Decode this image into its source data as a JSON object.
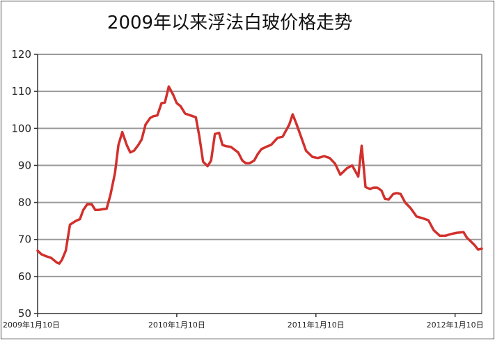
{
  "chart_data": {
    "type": "line",
    "title": "2009年以来浮法白玻价格走势",
    "xlabel": "",
    "ylabel": "",
    "ylim": [
      50,
      120
    ],
    "yticks": [
      50,
      60,
      70,
      80,
      90,
      100,
      110,
      120
    ],
    "xticks": [
      "2009年1月10日",
      "2010年1月10日",
      "2011年1月10日",
      "2012年1月10日"
    ],
    "grid": true,
    "series": [
      {
        "color": "#d2302c",
        "x": [
          "2009-01-10",
          "2009-01-20",
          "2009-02-01",
          "2009-02-15",
          "2009-03-01",
          "2009-03-08",
          "2009-03-15",
          "2009-03-25",
          "2009-04-05",
          "2009-04-20",
          "2009-05-01",
          "2009-05-10",
          "2009-05-20",
          "2009-06-01",
          "2009-06-10",
          "2009-06-20",
          "2009-07-01",
          "2009-07-10",
          "2009-07-20",
          "2009-08-01",
          "2009-08-10",
          "2009-08-20",
          "2009-09-01",
          "2009-09-10",
          "2009-09-20",
          "2009-10-01",
          "2009-10-10",
          "2009-10-20",
          "2009-11-01",
          "2009-11-10",
          "2009-11-20",
          "2009-12-01",
          "2009-12-10",
          "2009-12-20",
          "2010-01-01",
          "2010-01-10",
          "2010-01-20",
          "2010-02-01",
          "2010-02-15",
          "2010-03-01",
          "2010-03-10",
          "2010-03-20",
          "2010-04-01",
          "2010-04-10",
          "2010-04-20",
          "2010-05-01",
          "2010-05-10",
          "2010-05-20",
          "2010-06-01",
          "2010-06-10",
          "2010-06-20",
          "2010-07-01",
          "2010-07-10",
          "2010-07-20",
          "2010-08-01",
          "2010-08-10",
          "2010-08-20",
          "2010-09-01",
          "2010-09-15",
          "2010-10-01",
          "2010-10-15",
          "2010-11-01",
          "2010-11-10",
          "2010-11-20",
          "2010-12-01",
          "2010-12-15",
          "2011-01-01",
          "2011-01-15",
          "2011-02-01",
          "2011-02-15",
          "2011-03-01",
          "2011-03-15",
          "2011-04-01",
          "2011-04-15",
          "2011-05-01",
          "2011-05-10",
          "2011-05-20",
          "2011-06-01",
          "2011-06-10",
          "2011-06-20",
          "2011-07-01",
          "2011-07-10",
          "2011-07-20",
          "2011-08-01",
          "2011-08-10",
          "2011-08-20",
          "2011-09-01",
          "2011-09-15",
          "2011-10-01",
          "2011-10-15",
          "2011-11-01",
          "2011-11-15",
          "2011-12-01",
          "2011-12-15",
          "2012-01-01",
          "2012-01-15",
          "2012-02-01",
          "2012-02-10",
          "2012-02-20",
          "2012-03-01",
          "2012-03-10",
          "2012-03-20"
        ],
        "values": [
          67,
          66,
          65.5,
          65,
          63.8,
          63.5,
          64.5,
          67,
          74,
          75,
          75.5,
          78,
          79.5,
          79.5,
          78,
          78,
          78.2,
          78.3,
          82,
          88,
          95.5,
          99,
          95.5,
          93.5,
          94,
          95.5,
          97,
          101,
          102.8,
          103.3,
          103.5,
          106.8,
          107,
          111.3,
          109,
          106.8,
          106,
          104,
          103.5,
          103,
          98,
          91,
          89.8,
          91.3,
          98.5,
          98.8,
          95.5,
          95.2,
          95,
          94.3,
          93.5,
          91.3,
          90.6,
          90.6,
          91.3,
          93,
          94.4,
          95,
          95.6,
          97.4,
          97.8,
          101,
          103.8,
          101.2,
          98,
          94,
          92.3,
          92,
          92.5,
          92,
          90.5,
          87.5,
          89.2,
          90,
          87,
          95.3,
          84.2,
          83.6,
          84,
          84,
          83.2,
          81,
          80.8,
          82.3,
          82.5,
          82.3,
          80,
          78.5,
          76.2,
          75.8,
          75.2,
          72.5,
          71,
          71,
          71.5,
          71.8,
          72,
          70.5,
          69.5,
          68.5,
          67.3,
          67.5
        ]
      }
    ]
  }
}
